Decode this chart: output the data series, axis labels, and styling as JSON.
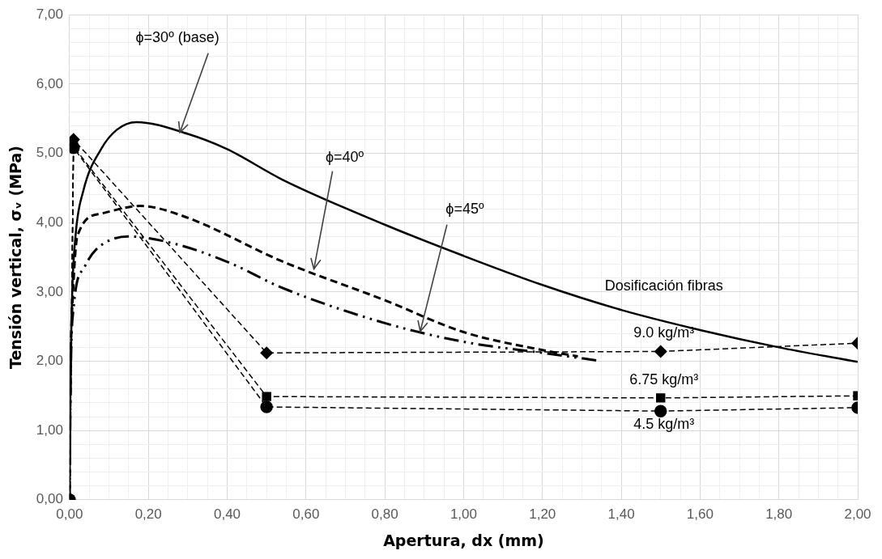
{
  "chart_data": {
    "type": "line",
    "xlabel": "Apertura, dx (mm)",
    "ylabel": "Tensión vertical, σᵥ (MPa)",
    "legend_title": "Dosificación fibras",
    "xlim": [
      0,
      2
    ],
    "ylim": [
      0,
      7
    ],
    "xticks": [
      {
        "value": 0,
        "label": "0,00"
      },
      {
        "value": 0.05,
        "label": null
      },
      {
        "value": 0.1,
        "label": null
      },
      {
        "value": 0.15,
        "label": null
      },
      {
        "value": 0.2,
        "label": "0,20"
      },
      {
        "value": 0.25,
        "label": null
      },
      {
        "value": 0.3,
        "label": null
      },
      {
        "value": 0.35,
        "label": null
      },
      {
        "value": 0.4,
        "label": "0,40"
      },
      {
        "value": 0.45,
        "label": null
      },
      {
        "value": 0.5,
        "label": null
      },
      {
        "value": 0.55,
        "label": null
      },
      {
        "value": 0.6,
        "label": "0,60"
      },
      {
        "value": 0.65,
        "label": null
      },
      {
        "value": 0.7,
        "label": null
      },
      {
        "value": 0.75,
        "label": null
      },
      {
        "value": 0.8,
        "label": "0,80"
      },
      {
        "value": 0.85,
        "label": null
      },
      {
        "value": 0.9,
        "label": null
      },
      {
        "value": 0.95,
        "label": null
      },
      {
        "value": 1,
        "label": "1,00"
      },
      {
        "value": 1.05,
        "label": null
      },
      {
        "value": 1.1,
        "label": null
      },
      {
        "value": 1.15,
        "label": null
      },
      {
        "value": 1.2,
        "label": "1,20"
      },
      {
        "value": 1.25,
        "label": null
      },
      {
        "value": 1.3,
        "label": null
      },
      {
        "value": 1.35,
        "label": null
      },
      {
        "value": 1.4,
        "label": "1,40"
      },
      {
        "value": 1.45,
        "label": null
      },
      {
        "value": 1.5,
        "label": null
      },
      {
        "value": 1.55,
        "label": null
      },
      {
        "value": 1.6,
        "label": "1,60"
      },
      {
        "value": 1.65,
        "label": null
      },
      {
        "value": 1.7,
        "label": null
      },
      {
        "value": 1.75,
        "label": null
      },
      {
        "value": 1.8,
        "label": "1,80"
      },
      {
        "value": 1.85,
        "label": null
      },
      {
        "value": 1.9,
        "label": null
      },
      {
        "value": 1.95,
        "label": null
      },
      {
        "value": 2,
        "label": "2,00"
      }
    ],
    "yticks": [
      {
        "value": 0,
        "label": "0,00"
      },
      {
        "value": 0.2,
        "label": null
      },
      {
        "value": 0.4,
        "label": null
      },
      {
        "value": 0.6,
        "label": null
      },
      {
        "value": 0.8,
        "label": null
      },
      {
        "value": 1,
        "label": "1,00"
      },
      {
        "value": 1.2,
        "label": null
      },
      {
        "value": 1.4,
        "label": null
      },
      {
        "value": 1.6,
        "label": null
      },
      {
        "value": 1.8,
        "label": null
      },
      {
        "value": 2,
        "label": "2,00"
      },
      {
        "value": 2.2,
        "label": null
      },
      {
        "value": 2.4,
        "label": null
      },
      {
        "value": 2.6,
        "label": null
      },
      {
        "value": 2.8,
        "label": null
      },
      {
        "value": 3,
        "label": "3,00"
      },
      {
        "value": 3.2,
        "label": null
      },
      {
        "value": 3.4,
        "label": null
      },
      {
        "value": 3.6,
        "label": null
      },
      {
        "value": 3.8,
        "label": null
      },
      {
        "value": 4,
        "label": "4,00"
      },
      {
        "value": 4.2,
        "label": null
      },
      {
        "value": 4.4,
        "label": null
      },
      {
        "value": 4.6,
        "label": null
      },
      {
        "value": 4.8,
        "label": null
      },
      {
        "value": 5,
        "label": "5,00"
      },
      {
        "value": 5.2,
        "label": null
      },
      {
        "value": 5.4,
        "label": null
      },
      {
        "value": 5.6,
        "label": null
      },
      {
        "value": 5.8,
        "label": null
      },
      {
        "value": 6,
        "label": "6,00"
      },
      {
        "value": 6.2,
        "label": null
      },
      {
        "value": 6.4,
        "label": null
      },
      {
        "value": 6.6,
        "label": null
      },
      {
        "value": 6.8,
        "label": null
      },
      {
        "value": 7,
        "label": "7,00"
      }
    ],
    "grid": true,
    "legend": false,
    "series": [
      {
        "color": "#000000",
        "line_style": "solid",
        "marker": "none",
        "x": [
          0,
          0.002,
          0.006,
          0.015,
          0.035,
          0.08,
          0.12,
          0.17,
          0.3,
          0.4,
          0.54,
          0.8,
          1.0,
          1.2,
          1.4,
          1.6,
          1.8,
          2.0
        ],
        "values": [
          0,
          1.5,
          2.84,
          3.8,
          4.46,
          5.06,
          5.34,
          5.45,
          5.28,
          5.06,
          4.62,
          3.97,
          3.52,
          3.1,
          2.74,
          2.45,
          2.2,
          1.99
        ]
      },
      {
        "color": "#000000",
        "line_style": "dashed",
        "marker": "none",
        "x": [
          0,
          0.003,
          0.008,
          0.02,
          0.08,
          0.18,
          0.29,
          0.54,
          0.8,
          1.0,
          1.2,
          1.29
        ],
        "values": [
          0,
          2.0,
          2.9,
          3.81,
          4.13,
          4.24,
          4.09,
          3.44,
          2.88,
          2.42,
          2.16,
          2.07
        ]
      },
      {
        "color": "#000000",
        "line_style": "dotted",
        "marker": "none",
        "x": [
          0,
          0.003,
          0.01,
          0.038,
          0.067,
          0.15,
          0.27,
          0.41,
          0.535,
          0.8,
          1.0,
          1.2,
          1.34
        ],
        "values": [
          0,
          1.8,
          2.76,
          3.36,
          3.61,
          3.8,
          3.69,
          3.41,
          3.07,
          2.55,
          2.28,
          2.12,
          2.01
        ]
      },
      {
        "name": "9.0 kg/m³",
        "color": "#000000",
        "line_style": "dashed",
        "marker": "diamond",
        "x": [
          0,
          0.01,
          0.5,
          1.5,
          2.0
        ],
        "values": [
          0,
          5.2,
          2.12,
          2.14,
          2.26
        ]
      },
      {
        "name": "6.75 kg/m³",
        "color": "#000000",
        "line_style": "dashed",
        "marker": "square",
        "x": [
          0,
          0.01,
          0.5,
          1.5,
          2.0
        ],
        "values": [
          0,
          5.1,
          1.49,
          1.47,
          1.5
        ]
      },
      {
        "name": "4.5 kg/m³",
        "color": "#000000",
        "line_style": "dashed",
        "marker": "circle",
        "x": [
          0,
          0.01,
          0.5,
          1.5,
          2.0
        ],
        "values": [
          0,
          5.08,
          1.34,
          1.28,
          1.33
        ]
      }
    ],
    "annotations": [
      {
        "text": "ϕ=30º (base)",
        "x": 0.28,
        "y": 5.3
      },
      {
        "text": "ϕ=40º",
        "x": 0.62,
        "y": 3.33
      },
      {
        "text": "ϕ=45º",
        "x": 0.89,
        "y": 2.43
      }
    ]
  }
}
